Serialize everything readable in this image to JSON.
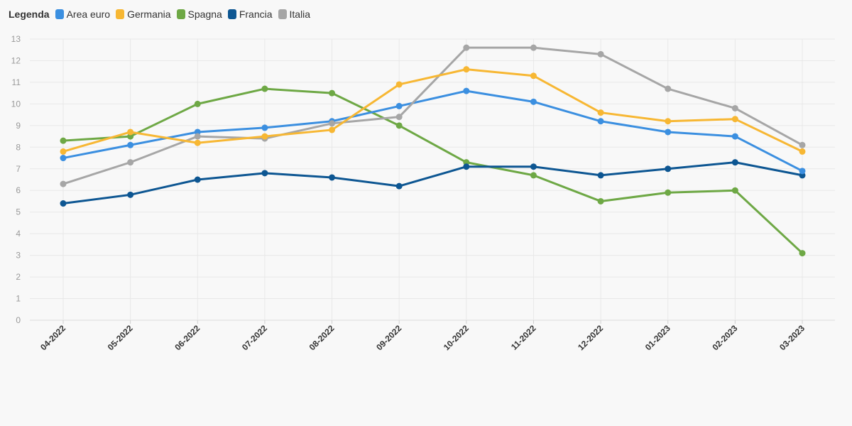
{
  "legend": {
    "title": "Legenda",
    "items": [
      {
        "name": "Area euro",
        "color": "#3b8fe0"
      },
      {
        "name": "Germania",
        "color": "#f7b733"
      },
      {
        "name": "Spagna",
        "color": "#6ea845"
      },
      {
        "name": "Francia",
        "color": "#0d5692"
      },
      {
        "name": "Italia",
        "color": "#a6a6a6"
      }
    ]
  },
  "chart_data": {
    "type": "line",
    "title": "",
    "xlabel": "",
    "ylabel": "",
    "ylim": [
      0,
      13
    ],
    "yticks": [
      0,
      1,
      2,
      3,
      4,
      5,
      6,
      7,
      8,
      9,
      10,
      11,
      12,
      13
    ],
    "grid": true,
    "legend_position": "top-left",
    "categories": [
      "04-2022",
      "05-2022",
      "06-2022",
      "07-2022",
      "08-2022",
      "09-2022",
      "10-2022",
      "11-2022",
      "12-2022",
      "01-2023",
      "02-2023",
      "03-2023"
    ],
    "series": [
      {
        "name": "Spagna",
        "color": "#6ea845",
        "values": [
          8.3,
          8.5,
          10.0,
          10.7,
          10.5,
          9.0,
          7.3,
          6.7,
          5.5,
          5.9,
          6.0,
          3.1
        ]
      },
      {
        "name": "Francia",
        "color": "#0d5692",
        "values": [
          5.4,
          5.8,
          6.5,
          6.8,
          6.6,
          6.2,
          7.1,
          7.1,
          6.7,
          7.0,
          7.3,
          6.7
        ]
      },
      {
        "name": "Area euro",
        "color": "#3b8fe0",
        "values": [
          7.5,
          8.1,
          8.7,
          8.9,
          9.2,
          9.9,
          10.6,
          10.1,
          9.2,
          8.7,
          8.5,
          6.9
        ]
      },
      {
        "name": "Italia",
        "color": "#a6a6a6",
        "values": [
          6.3,
          7.3,
          8.5,
          8.4,
          9.1,
          9.4,
          12.6,
          12.6,
          12.3,
          10.7,
          9.8,
          8.1
        ]
      },
      {
        "name": "Germania",
        "color": "#f7b733",
        "values": [
          7.8,
          8.7,
          8.2,
          8.5,
          8.8,
          10.9,
          11.6,
          11.3,
          9.6,
          9.2,
          9.3,
          7.8
        ]
      }
    ]
  }
}
